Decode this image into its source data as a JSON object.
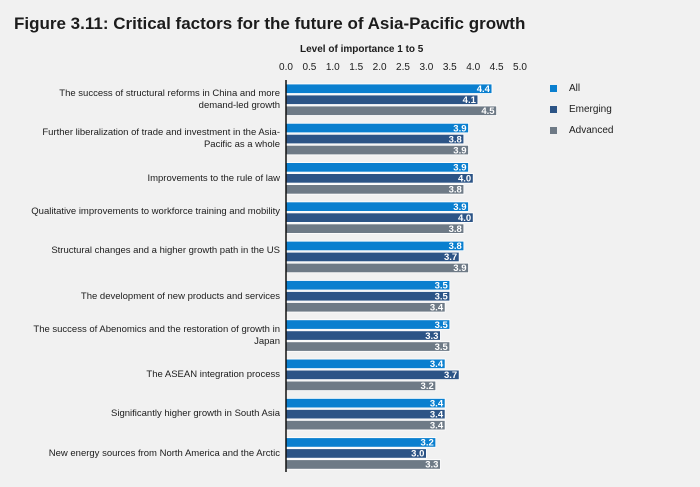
{
  "chart_data": {
    "type": "bar",
    "orientation": "horizontal",
    "title": "Figure 3.11: Critical factors for the future of Asia-Pacific growth",
    "xlabel": "Level of importance 1 to 5",
    "xlim": [
      0,
      5
    ],
    "xticks": [
      "0.0",
      "0.5",
      "1.0",
      "1.5",
      "2.0",
      "2.5",
      "3.0",
      "3.5",
      "4.0",
      "4.5",
      "5.0"
    ],
    "grid": false,
    "legend": "right",
    "categories": [
      "The success of structural reforms in China and more demand-led growth",
      "Further liberalization of trade and investment in the Asia-Pacific as a whole",
      "Improvements to the rule of law",
      "Qualitative improvements to workforce training and mobility",
      "Structural changes and a higher growth path in the US",
      "The development of new products and services",
      "The success of Abenomics and the restoration of growth in Japan",
      "The ASEAN integration process",
      "Significantly higher growth in South Asia",
      "New energy sources from North America and the Arctic"
    ],
    "series": [
      {
        "name": "All",
        "color": "#0a7fcf",
        "values": [
          4.4,
          3.9,
          3.9,
          3.9,
          3.8,
          3.5,
          3.5,
          3.4,
          3.4,
          3.2
        ]
      },
      {
        "name": "Emerging",
        "color": "#2c5486",
        "values": [
          4.1,
          3.8,
          4.0,
          4.0,
          3.7,
          3.5,
          3.3,
          3.7,
          3.4,
          3.0
        ]
      },
      {
        "name": "Advanced",
        "color": "#6e7a86",
        "values": [
          4.5,
          3.9,
          3.8,
          3.8,
          3.9,
          3.4,
          3.5,
          3.2,
          3.4,
          3.3
        ]
      }
    ]
  }
}
